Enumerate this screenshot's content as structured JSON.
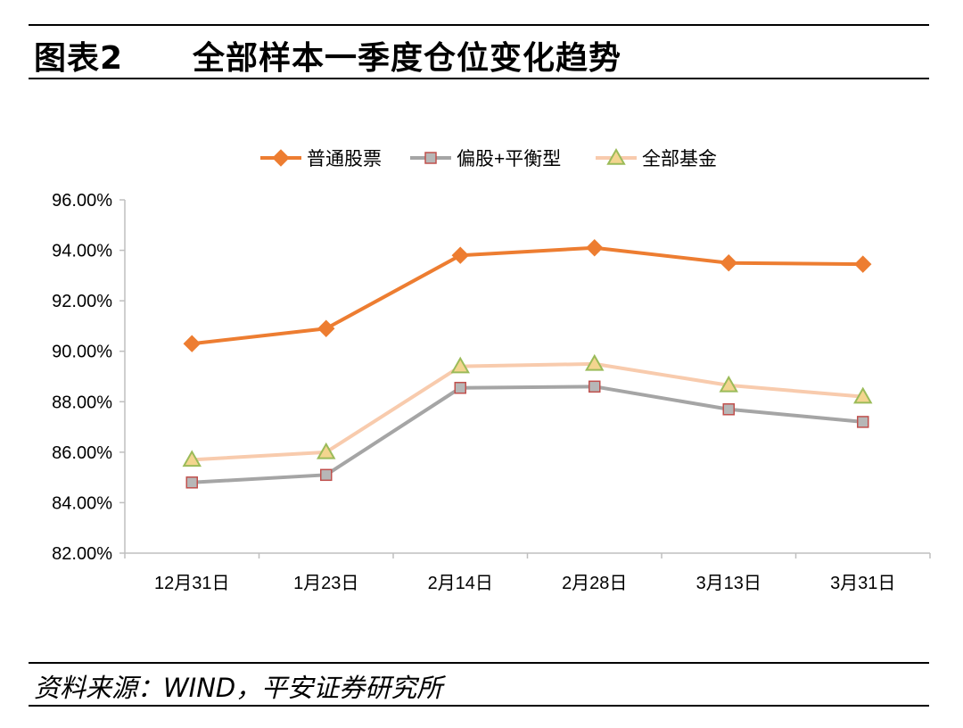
{
  "header": {
    "figure_number": "图表2",
    "title": "全部样本一季度仓位变化趋势"
  },
  "footer": {
    "source": "资料来源：WIND，平安证券研究所"
  },
  "chart_data": {
    "type": "line",
    "categories": [
      "12月31日",
      "1月23日",
      "2月14日",
      "2月28日",
      "3月13日",
      "3月31日"
    ],
    "series": [
      {
        "name": "普通股票",
        "values": [
          90.3,
          90.9,
          93.8,
          94.1,
          93.5,
          93.45
        ],
        "color": "#ED7D31",
        "marker": "diamond"
      },
      {
        "name": "偏股+平衡型",
        "values": [
          84.8,
          85.1,
          88.55,
          88.6,
          87.7,
          87.2
        ],
        "color": "#A5A5A5",
        "marker": "square"
      },
      {
        "name": "全部基金",
        "values": [
          85.7,
          86.0,
          89.4,
          89.5,
          88.65,
          88.2
        ],
        "color": "#F8CBAD",
        "marker": "triangle"
      }
    ],
    "ylim": [
      82,
      96
    ],
    "yticks": [
      "82.00%",
      "84.00%",
      "86.00%",
      "88.00%",
      "90.00%",
      "92.00%",
      "94.00%",
      "96.00%"
    ],
    "grid": false,
    "legend": "top-center",
    "title": "",
    "xlabel": "",
    "ylabel": ""
  }
}
